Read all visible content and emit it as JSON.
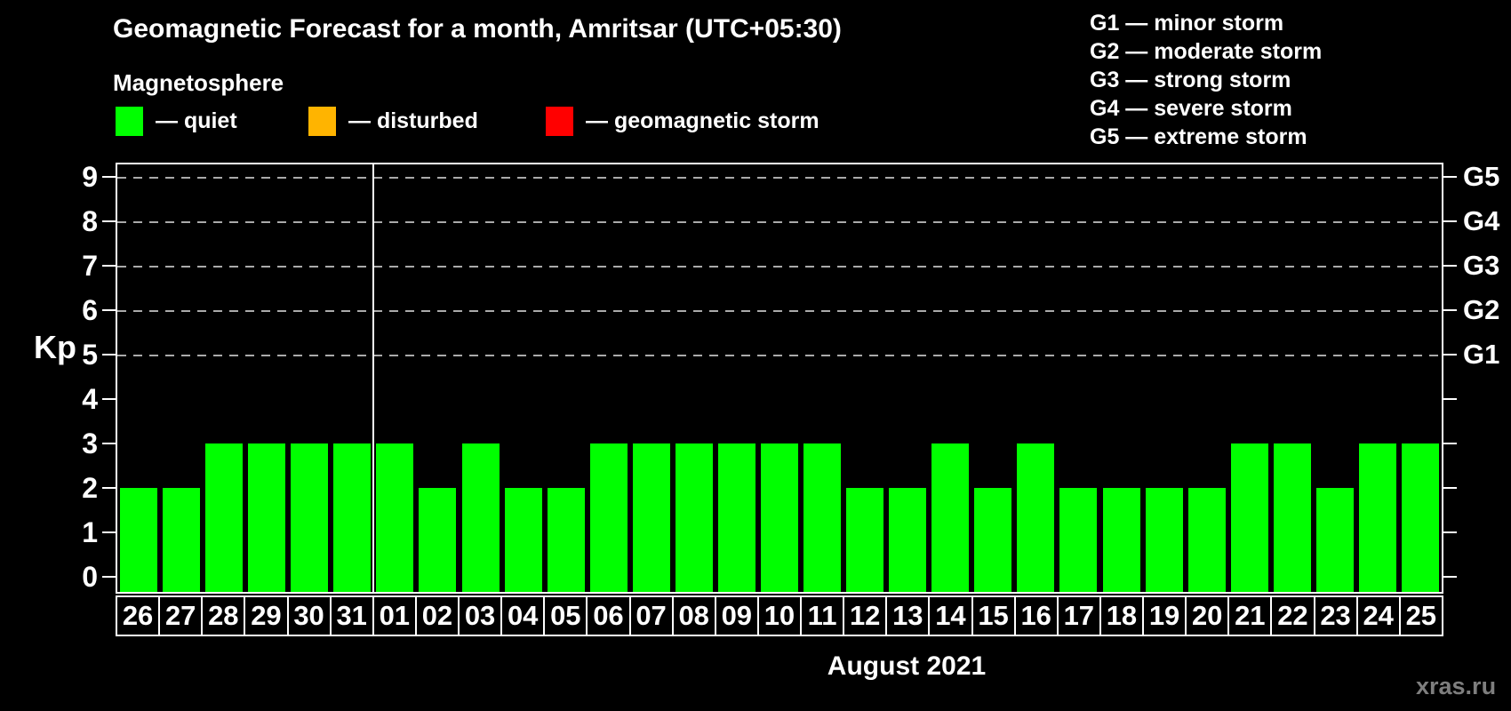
{
  "header": {
    "title": "Geomagnetic Forecast for a month, Amritsar (UTC+05:30)",
    "subtitle": "Magnetosphere"
  },
  "legend": {
    "items": [
      {
        "key": "quiet",
        "label": "— quiet",
        "color": "#00ff00"
      },
      {
        "key": "disturbed",
        "label": "— disturbed",
        "color": "#ffb400"
      },
      {
        "key": "storm",
        "label": "— geomagnetic storm",
        "color": "#ff0000"
      }
    ]
  },
  "g_legend": {
    "lines": [
      "G1 — minor storm",
      "G2 — moderate storm",
      "G3 — strong storm",
      "G4 — severe storm",
      "G5 — extreme storm"
    ]
  },
  "chart_data": {
    "type": "bar",
    "title": "Geomagnetic Forecast for a month, Amritsar (UTC+05:30)",
    "xlabel": "August 2021",
    "ylabel": "Kp",
    "categories": [
      "26",
      "27",
      "28",
      "29",
      "30",
      "31",
      "01",
      "02",
      "03",
      "04",
      "05",
      "06",
      "07",
      "08",
      "09",
      "10",
      "11",
      "12",
      "13",
      "14",
      "15",
      "16",
      "17",
      "18",
      "19",
      "20",
      "21",
      "22",
      "23",
      "24",
      "25"
    ],
    "values": [
      2,
      2,
      3,
      3,
      3,
      3,
      3,
      2,
      3,
      2,
      2,
      3,
      3,
      3,
      3,
      3,
      3,
      2,
      2,
      3,
      2,
      3,
      2,
      2,
      2,
      2,
      3,
      3,
      2,
      3,
      3
    ],
    "bar_color": "#00ff00",
    "yticks": [
      0,
      1,
      2,
      3,
      4,
      5,
      6,
      7,
      8,
      9
    ],
    "ylim": [
      -0.35,
      9.65
    ],
    "grid": "dashed horizontal lines at storm levels only",
    "legend_position": "top",
    "right_axis_labels": [
      {
        "label": "G5",
        "kp": 9
      },
      {
        "label": "G4",
        "kp": 8
      },
      {
        "label": "G3",
        "kp": 7
      },
      {
        "label": "G2",
        "kp": 6
      },
      {
        "label": "G1",
        "kp": 5
      }
    ],
    "month_divider_after_index": 5
  },
  "footer": {
    "watermark": "xras.ru"
  },
  "colors": {
    "background": "#000000",
    "text": "#ffffff",
    "grid": "#aaaaaa",
    "quiet": "#00ff00",
    "disturbed": "#ffb400",
    "storm": "#ff0000",
    "watermark": "#7e7e7e"
  }
}
